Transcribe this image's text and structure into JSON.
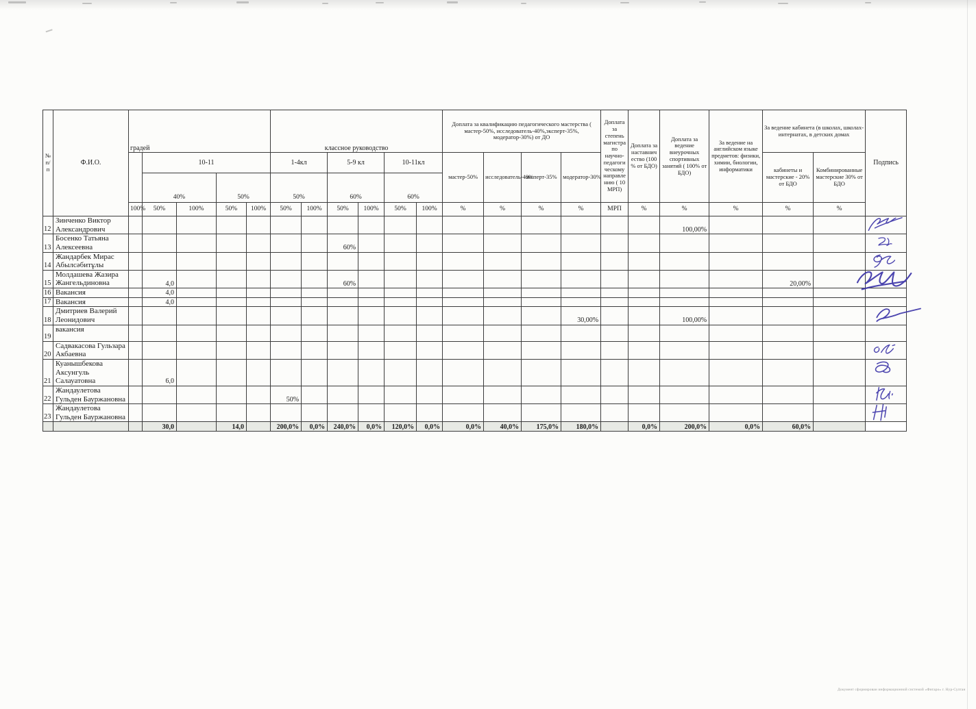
{
  "page": {
    "footer_note": "Документ сформирован информационной системой «Фигаро» г. Нур-Султан"
  },
  "table": {
    "header": {
      "col_num": "№ п/п",
      "col_fio": "Ф.И.О.",
      "group_gradey": "градей",
      "group_class": "классное руководство",
      "group_qual": "Доплата за квалификацию педагогического мастерства                  ( мастер-50%, исследователь-40%,эксперт-35%, модератор-30%) от ДО",
      "col_magistr": "Доплата за степень магистра по научно-педагогическому направлению ( 10 МРП)",
      "col_nastav": "Доплата за наставничество (100 % от БДО)",
      "col_sport": "Доплата за ведение внеурочных спортивных занятий ( 100% от БДО)",
      "col_english": "За ведение на английском языке предметов: физики, химии, биологии, информатики",
      "group_kabinet": "За ведение кабинета (в школах, школах-интернатах, в детских домах",
      "col_kabinet": "кабинеты и мастерские  - 20% от БДО",
      "col_kombi": "Комбинированные мастерские 30% от БДО",
      "col_sign": "Подпись",
      "sub_1011": "10-11",
      "sub_14kl": "1-4кл",
      "sub_59kl": "5-9 кл",
      "sub_1011kl": "10-11кл",
      "sub_master": "мастер-50%",
      "sub_issled": "исследователь-40%",
      "sub_expert": "эксперт-35%",
      "sub_moderator": "модератор-30%",
      "pct_40": "40%",
      "pct_50a": "50%",
      "pct_50b": "50%",
      "pct_60a": "60%",
      "pct_60b": "60%",
      "unit_row": [
        "100%",
        "50%",
        "100%",
        "50%",
        "100%",
        "50%",
        "100%",
        "50%",
        "100%",
        "50%",
        "100%",
        "%",
        "%",
        "%",
        "%",
        "МРП",
        "%",
        "%",
        "%",
        "%",
        "%"
      ]
    },
    "rows": [
      {
        "num": "12",
        "name": "Зинченко Виктор Александрович",
        "cells": {
          "sport": "100,00%"
        },
        "signature": true
      },
      {
        "num": "13",
        "name": "Босенко Татьяна Алексеевна",
        "cells": {
          "kl59_50": "60%"
        },
        "signature": true
      },
      {
        "num": "14",
        "name": "Жандарбек Мирас Абылсәбитұлы",
        "cells": {},
        "signature": true
      },
      {
        "num": "15",
        "name": "Молдашева Жазира Жангельдиновна",
        "cells": {
          "c40_50": "4,0",
          "kl59_50": "60%",
          "kabinet": "20,00%"
        },
        "signature": true
      },
      {
        "num": "16",
        "name": "Вакансия",
        "cells": {
          "c40_50": "4,0"
        },
        "signature": false
      },
      {
        "num": "17",
        "name": "Вакансия",
        "cells": {
          "c40_50": "4,0"
        },
        "signature": false
      },
      {
        "num": "18",
        "name": "Дмитриев Валерий Леонидович",
        "cells": {
          "moderator": "30,00%",
          "sport": "100,00%"
        },
        "signature": true
      },
      {
        "num": "19",
        "name": "вакансия",
        "cells": {},
        "signature": false,
        "name_top": true
      },
      {
        "num": "20",
        "name": "Садвакасова Гульзара Акбаевна",
        "cells": {},
        "signature": true
      },
      {
        "num": "21",
        "name": "Куанышбекова Аксунгуль Салауатовна",
        "cells": {
          "c40_50": "6,0"
        },
        "signature": true
      },
      {
        "num": "22",
        "name": "Жандаулетова Гульден Бауржановна",
        "cells": {
          "kl14_50": "50%"
        },
        "signature": true
      },
      {
        "num": "23",
        "name": "Жандаулетова Гульден Бауржановна",
        "cells": {},
        "signature": true
      }
    ],
    "totals": {
      "c40_50": "30,0",
      "c50_50": "14,0",
      "kl14_50": "200,0%",
      "kl14_100": "0,0%",
      "kl59_50": "240,0%",
      "kl59_100": "0,0%",
      "kl1011_50": "120,0%",
      "kl1011_100": "0,0%",
      "master": "0,0%",
      "issled": "40,0%",
      "expert": "175,0%",
      "moderator": "180,0%",
      "nastav": "0,0%",
      "sport": "200,0%",
      "english": "0,0%",
      "kabinet": "60,0%"
    }
  },
  "colors": {
    "signature_ink": "#3d35a8",
    "table_border": "#3b3b3b",
    "totals_bg": "#e8eae5",
    "paper": "#fcfcfa"
  }
}
